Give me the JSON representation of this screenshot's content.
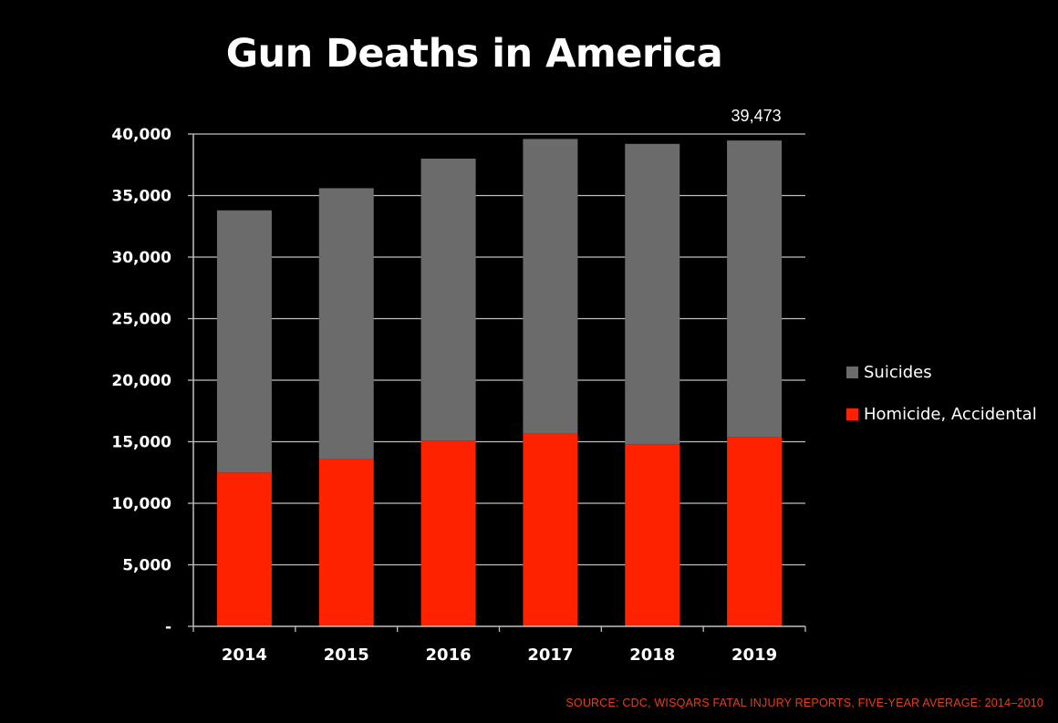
{
  "chart_data": {
    "type": "bar",
    "stacked": true,
    "title": "Gun Deaths in America",
    "categories": [
      "2014",
      "2015",
      "2016",
      "2017",
      "2018",
      "2019"
    ],
    "series": [
      {
        "name": "Homicide, Accidental",
        "color": "#ff2200",
        "values": [
          12500,
          13600,
          15100,
          15700,
          14800,
          15400
        ]
      },
      {
        "name": "Suicides",
        "color": "#6b6b6b",
        "values": [
          21300,
          22000,
          22900,
          23900,
          24400,
          24073
        ]
      }
    ],
    "ylim": [
      0,
      40000
    ],
    "yticks": [
      {
        "value": 0,
        "label": "-"
      },
      {
        "value": 5000,
        "label": "5,000"
      },
      {
        "value": 10000,
        "label": "10,000"
      },
      {
        "value": 15000,
        "label": "15,000"
      },
      {
        "value": 20000,
        "label": "20,000"
      },
      {
        "value": 25000,
        "label": "25,000"
      },
      {
        "value": 30000,
        "label": "30,000"
      },
      {
        "value": 35000,
        "label": "35,000"
      },
      {
        "value": 40000,
        "label": "40,000"
      }
    ],
    "annotations": [
      {
        "category": "2019",
        "value": 39473,
        "text": "39,473"
      }
    ],
    "grid": true,
    "legend": "right",
    "legend_order": [
      "Suicides",
      "Homicide, Accidental"
    ]
  },
  "source": "SOURCE: CDC, WISQARS FATAL INJURY REPORTS, FIVE-YEAR AVERAGE: 2014–2010"
}
